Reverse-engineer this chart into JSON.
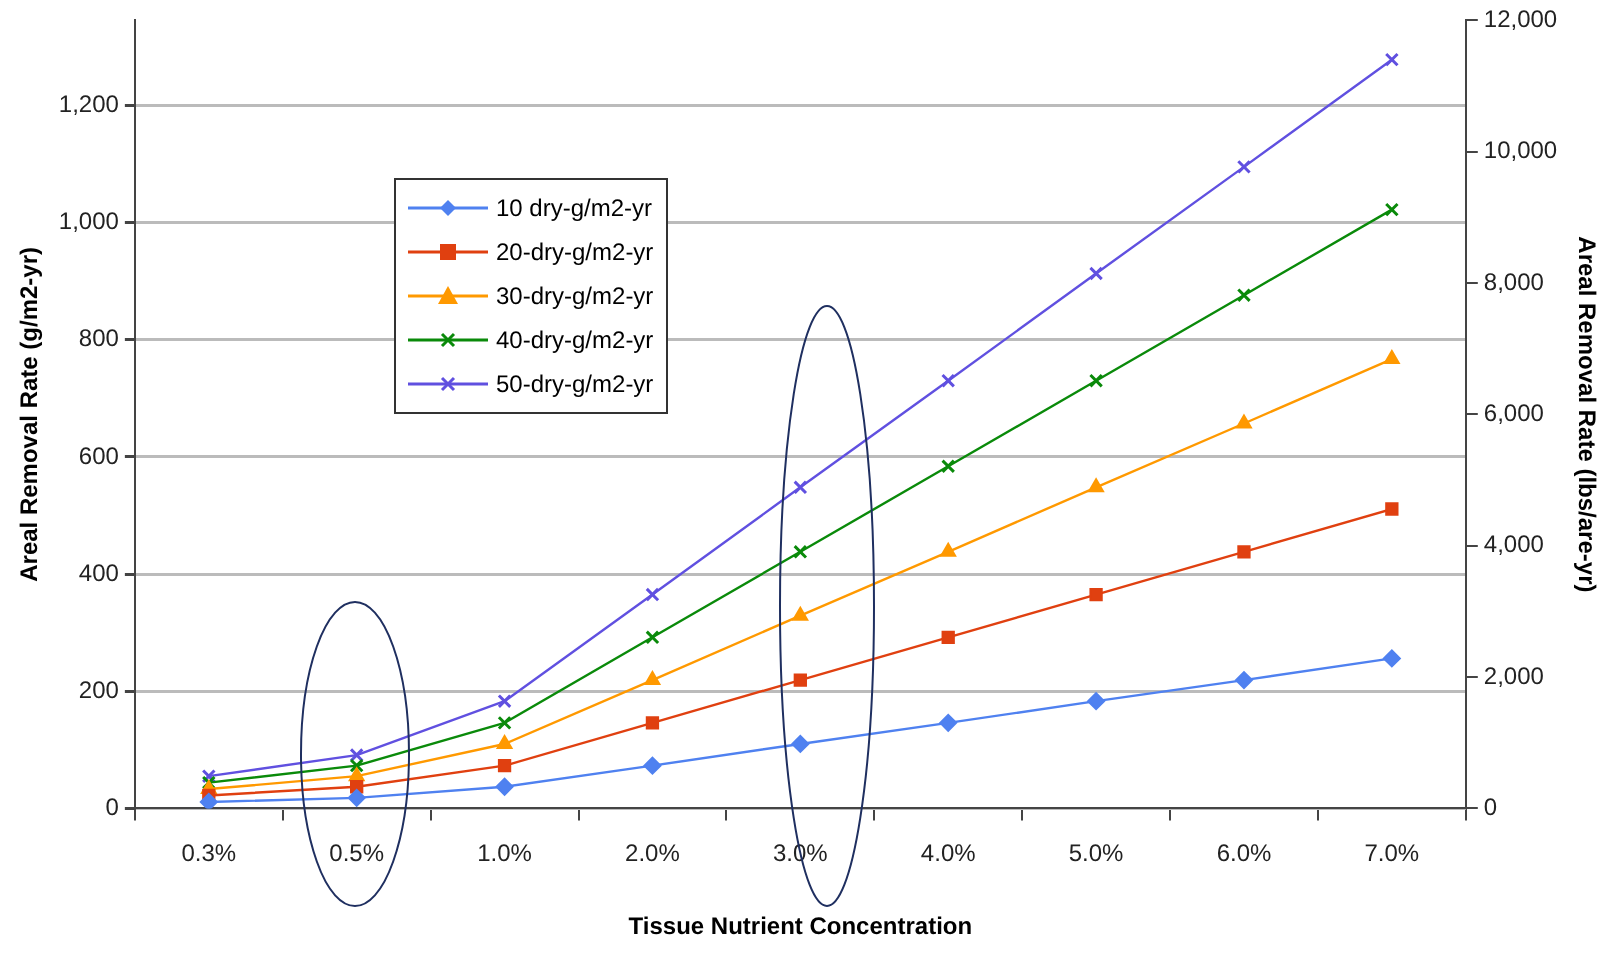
{
  "chart_data": {
    "type": "line",
    "xlabel": "Tissue Nutrient Concentration",
    "ylabel": "Areal Removal Rate (g/m2-yr)",
    "y2label": "Areal Removal Rate (lbs/are-yr)",
    "categories": [
      "0.3%",
      "0.5%",
      "1.0%",
      "2.0%",
      "3.0%",
      "4.0%",
      "5.0%",
      "6.0%",
      "7.0%"
    ],
    "series": [
      {
        "name": "10 dry-g/m2-yr",
        "color": "#4f81f0",
        "marker": "diamond",
        "values": [
          11,
          18,
          37,
          73,
          110,
          146,
          183,
          219,
          256
        ]
      },
      {
        "name": "20-dry-g/m2-yr",
        "color": "#e04010",
        "marker": "square",
        "values": [
          22,
          37,
          73,
          146,
          219,
          292,
          365,
          438,
          511
        ]
      },
      {
        "name": "30-dry-g/m2-yr",
        "color": "#ff9900",
        "marker": "triangle",
        "values": [
          33,
          55,
          110,
          219,
          329,
          438,
          548,
          657,
          767
        ]
      },
      {
        "name": "40-dry-g/m2-yr",
        "color": "#0a8a0a",
        "marker": "cross",
        "values": [
          44,
          73,
          146,
          292,
          438,
          584,
          730,
          876,
          1022
        ]
      },
      {
        "name": "50-dry-g/m2-yr",
        "color": "#6050e0",
        "marker": "cross",
        "values": [
          55,
          91,
          183,
          365,
          548,
          730,
          913,
          1095,
          1278
        ]
      }
    ],
    "ylim": [
      0,
      1345
    ],
    "yticks": [
      0,
      {
        "value": 200,
        "label": "200"
      },
      {
        "value": 400,
        "label": "400"
      },
      {
        "value": 600,
        "label": "600"
      },
      {
        "value": 800,
        "label": "800"
      },
      {
        "value": 1000,
        "label": "1,000"
      },
      {
        "value": 1200,
        "label": "1,200"
      }
    ],
    "y2lim": [
      0,
      12000
    ],
    "y2ticks": [
      0,
      {
        "value": 2000,
        "label": "2,000"
      },
      {
        "value": 4000,
        "label": "4,000"
      },
      {
        "value": 6000,
        "label": "6,000"
      },
      {
        "value": 8000,
        "label": "8,000"
      },
      {
        "value": 10000,
        "label": "10,000"
      },
      {
        "value": 12000,
        "label": "12,000"
      }
    ],
    "grid": "y",
    "legend": "top left"
  }
}
